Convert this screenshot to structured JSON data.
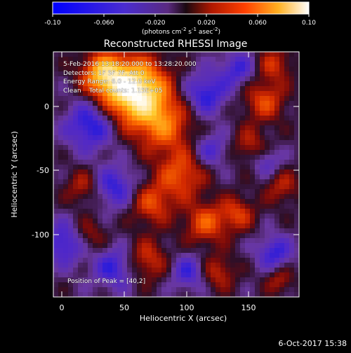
{
  "colorbar": {
    "tick_labels": [
      "-0.10",
      "-0.060",
      "-0.020",
      "0.020",
      "0.060",
      "0.10"
    ],
    "units_prefix": "(photons cm",
    "units_exp1": "-2",
    "units_mid1": " s",
    "units_exp2": "-1",
    "units_mid2": " asec",
    "units_exp3": "-2",
    "units_suffix": ")"
  },
  "title": "Reconstructed RHESSI Image",
  "info": {
    "line1": "5-Feb-2016 13:18:20.000 to 13:28:20.000",
    "line2": "Detectors: 1F 5F 7F, Att 0",
    "line3": "Energy Range: 6.0 - 12.0 keV",
    "line4": "Clean    Total counts: 1.15E+05"
  },
  "peak": "Position of Peak = [40,2]",
  "axes": {
    "xlabel": "Heliocentric X (arcsec)",
    "ylabel": "Heliocentric Y (arcsec)",
    "xticks": [
      "0",
      "50",
      "100",
      "150"
    ],
    "yticks": [
      "0",
      "-50",
      "-100"
    ]
  },
  "timestamp": "6-Oct-2017 15:38",
  "image": {
    "colormap": [
      "#0000ff",
      "#5a2cc8",
      "#7a3a9a",
      "#2a1018",
      "#c02000",
      "#ff6a00",
      "#ffd020",
      "#ffffff"
    ],
    "peak_position": [
      40,
      2
    ],
    "x_range": [
      -7,
      190
    ],
    "y_range": [
      -150,
      18
    ]
  }
}
